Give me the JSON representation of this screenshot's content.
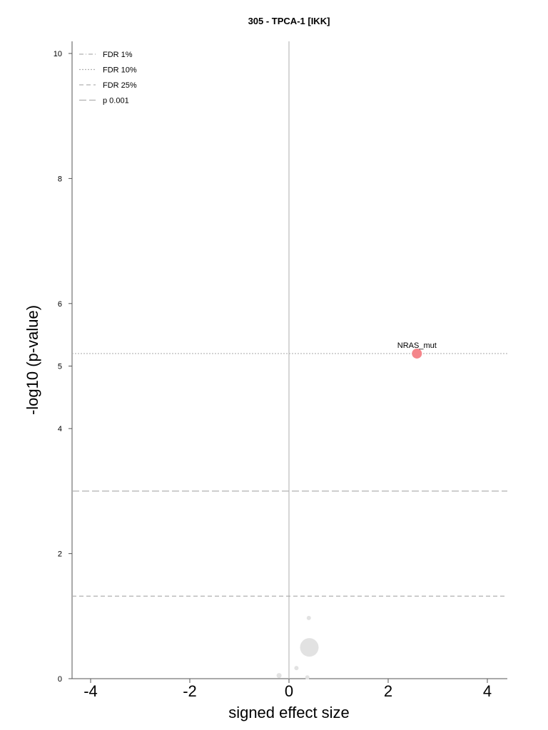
{
  "chart_data": {
    "type": "scatter",
    "title": "305 - TPCA-1 [IKK]",
    "xlabel": "signed effect size",
    "ylabel": "-log10 (p-value)",
    "xlim": [
      -4.4,
      4.4
    ],
    "ylim": [
      0,
      10.2
    ],
    "xticks": [
      -4,
      -2,
      0,
      2,
      4
    ],
    "xtick_labels": [
      "-4",
      "-2",
      "0",
      "2",
      "4"
    ],
    "yticks": [
      0,
      2,
      4,
      5,
      6,
      8,
      10
    ],
    "ytick_labels": [
      "0",
      "2",
      "4",
      "5",
      "6",
      "8",
      "10"
    ],
    "legend": {
      "position": "top-left",
      "entries": [
        {
          "label": "FDR 1%",
          "style": "dashdot"
        },
        {
          "label": "FDR 10%",
          "style": "dotted"
        },
        {
          "label": "FDR 25%",
          "style": "dashed"
        },
        {
          "label": "p 0.001",
          "style": "longdash"
        }
      ]
    },
    "threshold_lines": [
      {
        "name": "FDR 10%",
        "y": 5.2,
        "style": "dotted"
      },
      {
        "name": "p 0.001",
        "y": 3.0,
        "style": "longdash"
      },
      {
        "name": "FDR 25%",
        "y": 1.32,
        "style": "dashed"
      }
    ],
    "points": [
      {
        "x": 2.58,
        "y": 5.2,
        "size": "medium",
        "color": "#f4868b",
        "label": "NRAS_mut"
      },
      {
        "x": 0.41,
        "y": 0.5,
        "size": "large",
        "color": "#e2e2e2"
      },
      {
        "x": 0.4,
        "y": 0.97,
        "size": "tiny",
        "color": "#e2e2e2"
      },
      {
        "x": -0.2,
        "y": 0.05,
        "size": "small",
        "color": "#e2e2e2"
      },
      {
        "x": 0.15,
        "y": 0.17,
        "size": "tiny",
        "color": "#e2e2e2"
      },
      {
        "x": 0.37,
        "y": 0.02,
        "size": "tiny",
        "color": "#e2e2e2"
      }
    ],
    "grid": false,
    "colors": {
      "axis": "#555555",
      "zero_line": "#c8c8c8",
      "threshold": "#b0b0b0",
      "highlight": "#f4868b",
      "neutral": "#e2e2e2"
    }
  }
}
